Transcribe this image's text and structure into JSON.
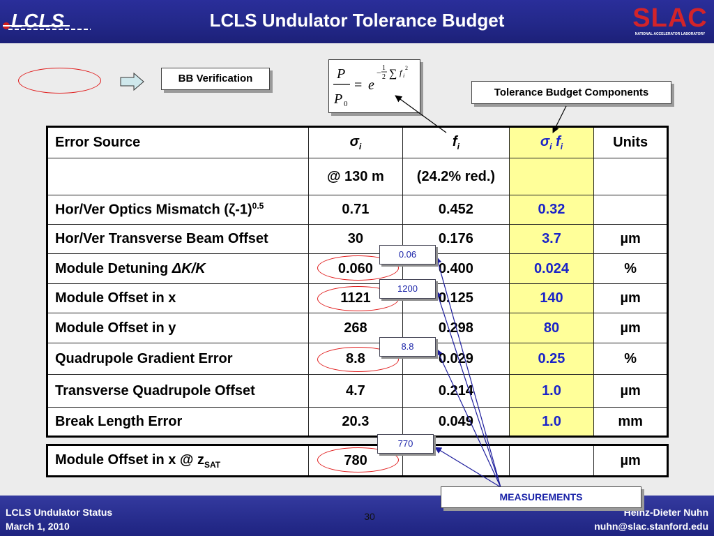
{
  "header": {
    "title": "LCLS Undulator Tolerance Budget",
    "left_logo_text": "LCLS",
    "right_logo_text": "SLAC",
    "right_logo_subtext": "NATIONAL ACCELERATOR LABORATORY"
  },
  "legend": {
    "bb_verification": "BB Verification"
  },
  "tolerance_components_label": "Tolerance Budget Components",
  "formula": {
    "lhs_num": "P",
    "lhs_den": "P",
    "lhs_den_sub": "0",
    "equals": "=",
    "base": "e",
    "exp_sign": "−",
    "exp_num": "1",
    "exp_den": "2",
    "exp_sum": "∑",
    "exp_f": "f",
    "exp_sub": "i",
    "exp_sup": "2"
  },
  "table": {
    "header": {
      "error_source": "Error Source",
      "sigma_i": "σ",
      "sigma_sub": "i",
      "f_i": "f",
      "f_sub": "i",
      "sigma_f_sigma": "σ",
      "sigma_f_sigma_sub": "i",
      "sigma_f_f": "f",
      "sigma_f_f_sub": "i",
      "units": "Units"
    },
    "subheader": {
      "sigma_i": "@ 130 m",
      "f_i": "(24.2% red.)"
    },
    "rows": [
      {
        "source": "Hor/Ver Optics Mismatch (",
        "source_greek": "ζ",
        "source_tail": "-1)",
        "source_sup": "0.5",
        "sigma": "0.71",
        "f": "0.452",
        "sf": "0.32",
        "units": ""
      },
      {
        "source": "Hor/Ver Transverse Beam Offset",
        "sigma": "30",
        "f": "0.176",
        "sf": "3.7",
        "units": "µm"
      },
      {
        "source": "Module Detuning ",
        "source_ital": "ΔK/K",
        "sigma": "0.060",
        "f": "0.400",
        "sf": "0.024",
        "units": "%"
      },
      {
        "source": "Module Offset in x",
        "sigma": "1121",
        "f": "0.125",
        "sf": "140",
        "units": "µm"
      },
      {
        "source": "Module Offset in y",
        "sigma": "268",
        "f": "0.298",
        "sf": "80",
        "units": "µm"
      },
      {
        "source": "Quadrupole Gradient Error",
        "sigma": "8.8",
        "f": "0.029",
        "sf": "0.25",
        "units": "%"
      },
      {
        "source": "Transverse Quadrupole Offset",
        "sigma": "4.7",
        "f": "0.214",
        "sf": "1.0",
        "units": "µm"
      },
      {
        "source": "Break Length Error",
        "sigma": "20.3",
        "f": "0.049",
        "sf": "1.0",
        "units": "mm"
      }
    ]
  },
  "extra_row": {
    "source": "Module Offset in x @ z",
    "source_sub": "SAT",
    "sigma": "780",
    "f": "",
    "sf": "",
    "units": "µm"
  },
  "measurement_labels": {
    "detuning": "0.06",
    "offset_x": "1200",
    "quad_gradient": "8.8",
    "offset_zsat": "770",
    "measurements": "MEASUREMENTS"
  },
  "footer": {
    "left_line1": "LCLS Undulator Status",
    "left_line2": "March 1, 2010",
    "page": "30",
    "right_line1": "Heinz-Dieter Nuhn",
    "right_line2": "nuhn@slac.stanford.edu"
  },
  "colors": {
    "header_bg": "#232889",
    "highlight_bg": "#ffff99",
    "highlight_text": "#1a23c8",
    "ellipse": "#e01b1b",
    "arrow_lines": "#1c1c9c"
  }
}
